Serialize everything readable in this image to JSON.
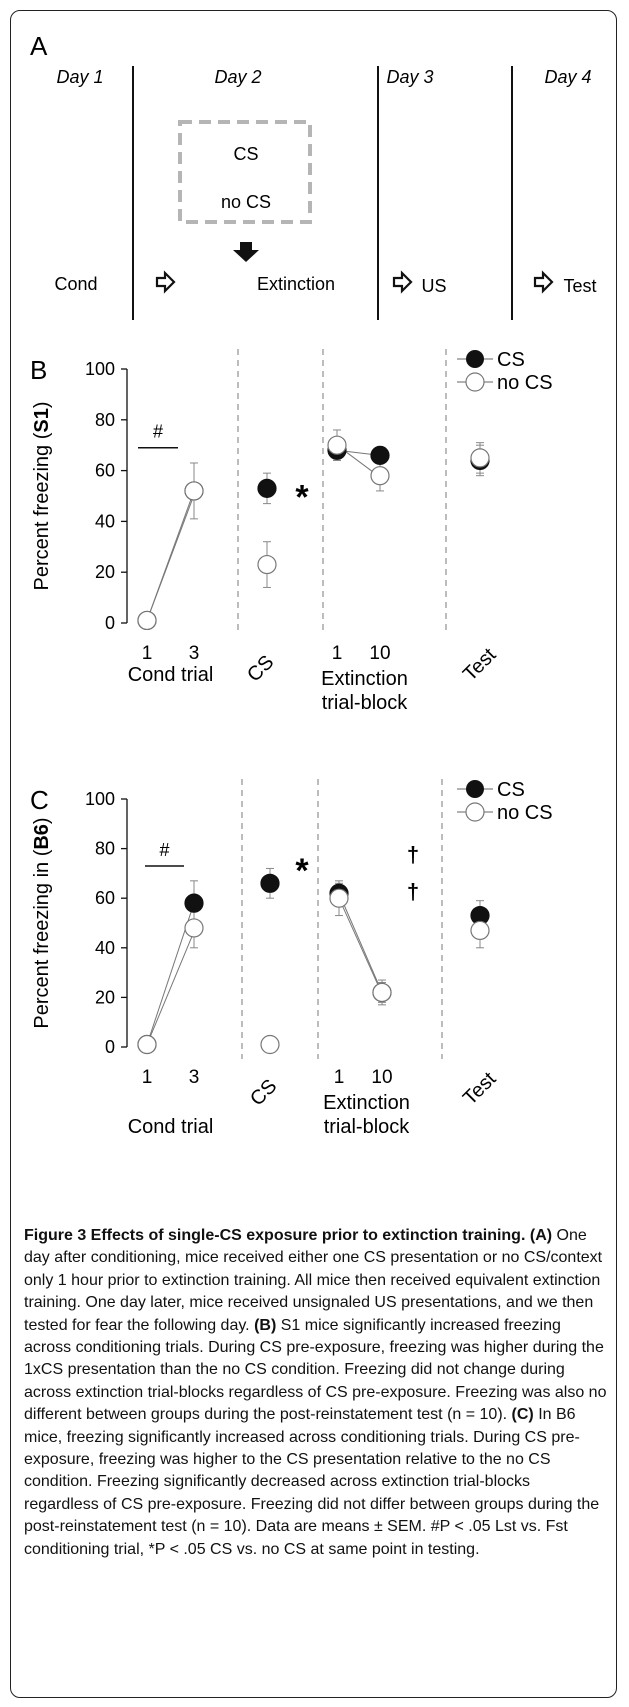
{
  "panelA": {
    "letter": "A",
    "days": [
      "Day 1",
      "Day 2",
      "Day 3",
      "Day 4"
    ],
    "box_items": [
      "CS",
      "no CS"
    ],
    "steps": [
      "Cond",
      "Extinction",
      "US",
      "Test"
    ]
  },
  "chart_data": [
    {
      "type": "line",
      "panel": "B",
      "ylabel": "Percent freezing ( S1)",
      "ylabel_pre": "Percent freezing (",
      "ylabel_bold": "S1",
      "ylabel_post": ")",
      "ylim": [
        0,
        100
      ],
      "yticks": [
        0,
        20,
        40,
        60,
        80,
        100
      ],
      "legend": [
        "CS",
        "no CS"
      ],
      "legend_position": "top-right",
      "group_labels": [
        "Cond trial",
        "CS",
        "Extinction",
        "trial-block",
        "Test"
      ],
      "xtick_labels": [
        "1",
        "3",
        "1",
        "10"
      ],
      "annotations": [
        "#",
        "*"
      ],
      "series": [
        {
          "name": "CS",
          "filled": true,
          "cond": [
            1,
            52
          ],
          "cs": 53,
          "ext": [
            68,
            66
          ],
          "test": 64
        },
        {
          "name": "no CS",
          "filled": false,
          "cond": [
            1,
            52
          ],
          "cs": 23,
          "ext": [
            70,
            58
          ],
          "test": 65
        }
      ],
      "errors": {
        "cs_filled": 6,
        "cs_open": 9,
        "cond_open": 11,
        "ext_filled": [
          4,
          3
        ],
        "ext_open": [
          6,
          6
        ],
        "test": 6
      }
    },
    {
      "type": "line",
      "panel": "C",
      "ylabel": "Percent freezing in (B6)",
      "ylabel_pre": "Percent freezing in (",
      "ylabel_bold": "B6",
      "ylabel_post": ")",
      "ylim": [
        0,
        100
      ],
      "yticks": [
        0,
        20,
        40,
        60,
        80,
        100
      ],
      "legend": [
        "CS",
        "no CS"
      ],
      "legend_position": "top-right",
      "group_labels": [
        "Cond trial",
        "CS",
        "Extinction",
        "trial-block",
        "Test"
      ],
      "xtick_labels": [
        "1",
        "3",
        "1",
        "10"
      ],
      "annotations": [
        "#",
        "*",
        "†",
        "†"
      ],
      "series": [
        {
          "name": "CS",
          "filled": true,
          "cond": [
            1,
            58
          ],
          "cs": 66,
          "ext": [
            62,
            22
          ],
          "test": 53
        },
        {
          "name": "no CS",
          "filled": false,
          "cond": [
            1,
            48
          ],
          "cs": 1,
          "ext": [
            60,
            22
          ],
          "test": 47
        }
      ],
      "errors": {
        "cs_filled": 6,
        "cond_filled": 9,
        "cond_open": 8,
        "ext_filled": [
          4,
          5
        ],
        "ext_open": [
          7,
          4
        ],
        "test_filled": 6,
        "test_open": 7
      }
    }
  ],
  "caption": {
    "title": "Figure 3 Effects of single-CS exposure prior to extinction training.",
    "segments": [
      {
        "b": "(A)",
        "t": " One day after conditioning, mice received either one CS presentation or no CS/context only 1 hour prior to extinction training. All mice then received equivalent extinction training. One day later, mice received unsignaled US presentations, and we then tested for fear the following day. "
      },
      {
        "b": "(B)",
        "t": " S1 mice significantly increased freezing across conditioning trials. During CS pre-exposure, freezing was higher during the 1xCS presentation than the no CS condition. Freezing did not change during across extinction trial-blocks regardless of CS pre-exposure. Freezing was also no different between groups during the post-reinstatement test (n = 10). "
      },
      {
        "b": "(C)",
        "t": " In B6 mice, freezing significantly increased across conditioning trials. During CS pre-exposure, freezing was higher to the CS presentation relative to the no CS condition. Freezing significantly decreased across extinction trial-blocks regardless of CS pre-exposure. Freezing did not differ between groups during the post-reinstatement test (n = 10). Data are means ± SEM. #P < .05 Lst vs. Fst conditioning trial, *P < .05 CS vs. no CS at same point in testing."
      }
    ]
  }
}
